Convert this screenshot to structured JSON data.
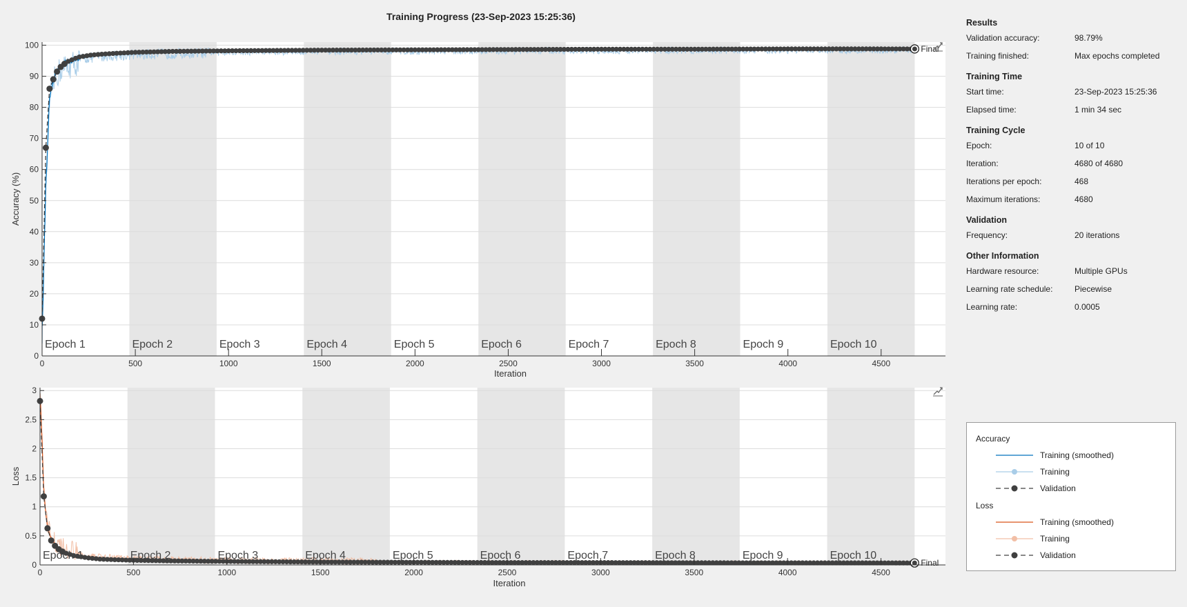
{
  "window": {
    "title": "Training Progress (23-Sep-2023 15:25:36)"
  },
  "colors": {
    "accuracy_smoothed": "#0072bd",
    "accuracy_training": "#a9cde8",
    "loss_smoothed": "#d95319",
    "loss_training": "#f2bfa6",
    "validation": "#404040",
    "epoch_shade": "#e6e6e6",
    "plot_bg": "#ffffff"
  },
  "epochs": [
    "Epoch 1",
    "Epoch 2",
    "Epoch 3",
    "Epoch 4",
    "Epoch 5",
    "Epoch 6",
    "Epoch 7",
    "Epoch 8",
    "Epoch 9",
    "Epoch 10"
  ],
  "final_label": "Final",
  "chart_data": [
    {
      "type": "line",
      "title": "",
      "xlabel": "Iteration",
      "ylabel": "Accuracy (%)",
      "xlim": [
        0,
        4845
      ],
      "ylim": [
        0,
        101
      ],
      "xticks": [
        0,
        500,
        1000,
        1500,
        2000,
        2500,
        3000,
        3500,
        4000,
        4500
      ],
      "yticks": [
        0,
        10,
        20,
        30,
        40,
        50,
        60,
        70,
        80,
        90,
        100
      ],
      "ytick_labels": [
        "0",
        "10",
        "20",
        "30",
        "40",
        "50",
        "60",
        "70",
        "80",
        "90",
        "100"
      ],
      "epoch_boundaries": [
        0,
        468,
        936,
        1404,
        1872,
        2340,
        2808,
        3276,
        3744,
        4212,
        4680
      ],
      "grid": true,
      "series": [
        {
          "name": "Training (smoothed)",
          "x": [
            1,
            20,
            40,
            60,
            80,
            100,
            150,
            200,
            300,
            400,
            500,
            700,
            900,
            1200,
            1600,
            2000,
            2500,
            3000,
            3500,
            4000,
            4500,
            4680
          ],
          "values": [
            9,
            55,
            83,
            89,
            92,
            93.5,
            95,
            96,
            96.8,
            97.2,
            97.5,
            97.8,
            98,
            98.2,
            98.3,
            98.4,
            98.5,
            98.6,
            98.6,
            98.7,
            98.7,
            98.8
          ]
        },
        {
          "name": "Training",
          "x": [
            1,
            20,
            40,
            60,
            80,
            100,
            150,
            200,
            300,
            400,
            500,
            700,
            900,
            1200,
            1600,
            2000,
            2500,
            3000,
            3500,
            4000,
            4500,
            4680
          ],
          "values": [
            9,
            55,
            83,
            89,
            92,
            93.5,
            95,
            96,
            96.8,
            97.2,
            97.5,
            97.8,
            98,
            98.2,
            98.3,
            98.4,
            98.5,
            98.6,
            98.6,
            98.7,
            98.7,
            98.8
          ]
        },
        {
          "name": "Validation",
          "x": [
            0,
            20,
            40,
            60,
            80,
            100,
            120,
            140,
            160,
            180,
            200,
            260,
            320,
            400,
            500,
            700,
            1000,
            1500,
            2000,
            2500,
            3000,
            3500,
            4000,
            4500,
            4680
          ],
          "values": [
            12,
            67,
            86,
            89,
            91.5,
            93,
            94,
            94.8,
            95.3,
            95.8,
            96.2,
            96.8,
            97.1,
            97.4,
            97.7,
            98,
            98.2,
            98.4,
            98.5,
            98.6,
            98.7,
            98.7,
            98.8,
            98.8,
            98.79
          ]
        }
      ]
    },
    {
      "type": "line",
      "title": "",
      "xlabel": "Iteration",
      "ylabel": "Loss",
      "xlim": [
        0,
        4845
      ],
      "ylim": [
        0,
        3.05
      ],
      "xticks": [
        0,
        500,
        1000,
        1500,
        2000,
        2500,
        3000,
        3500,
        4000,
        4500
      ],
      "yticks": [
        0,
        0.5,
        1,
        1.5,
        2,
        2.5,
        3
      ],
      "ytick_labels": [
        "0",
        "0.5",
        "1",
        "1.5",
        "2",
        "2.5",
        "3"
      ],
      "epoch_boundaries": [
        0,
        468,
        936,
        1404,
        1872,
        2340,
        2808,
        3276,
        3744,
        4212,
        4680
      ],
      "grid": true,
      "series": [
        {
          "name": "Training (smoothed)",
          "x": [
            1,
            10,
            20,
            30,
            40,
            60,
            80,
            100,
            150,
            200,
            300,
            400,
            500,
            700,
            1000,
            1500,
            2000,
            2500,
            3000,
            3500,
            4000,
            4500,
            4680
          ],
          "values": [
            2.85,
            2.2,
            1.3,
            0.9,
            0.65,
            0.45,
            0.35,
            0.28,
            0.2,
            0.16,
            0.12,
            0.1,
            0.09,
            0.07,
            0.06,
            0.05,
            0.045,
            0.04,
            0.04,
            0.035,
            0.035,
            0.033,
            0.033
          ]
        },
        {
          "name": "Training",
          "x": [
            1,
            10,
            20,
            30,
            40,
            60,
            80,
            100,
            150,
            200,
            300,
            400,
            500,
            700,
            1000,
            1500,
            2000,
            2500,
            3000,
            3500,
            4000,
            4500,
            4680
          ],
          "values": [
            2.85,
            2.2,
            1.3,
            0.9,
            0.65,
            0.45,
            0.35,
            0.28,
            0.2,
            0.16,
            0.12,
            0.1,
            0.09,
            0.07,
            0.06,
            0.05,
            0.045,
            0.04,
            0.04,
            0.035,
            0.035,
            0.033,
            0.033
          ]
        },
        {
          "name": "Validation",
          "x": [
            0,
            20,
            40,
            60,
            80,
            100,
            120,
            140,
            160,
            180,
            200,
            260,
            320,
            400,
            500,
            700,
            1000,
            1500,
            2000,
            2500,
            3000,
            3500,
            4000,
            4500,
            4680
          ],
          "values": [
            2.82,
            1.18,
            0.63,
            0.42,
            0.33,
            0.27,
            0.23,
            0.2,
            0.18,
            0.16,
            0.15,
            0.12,
            0.1,
            0.09,
            0.08,
            0.07,
            0.06,
            0.05,
            0.045,
            0.04,
            0.04,
            0.037,
            0.036,
            0.035,
            0.034
          ]
        }
      ]
    }
  ],
  "info": {
    "results": {
      "title": "Results",
      "validation_accuracy": {
        "label": "Validation accuracy:",
        "value": "98.79%"
      },
      "training_finished": {
        "label": "Training finished:",
        "value": "Max epochs completed"
      }
    },
    "training_time": {
      "title": "Training Time",
      "start_time": {
        "label": "Start time:",
        "value": "23-Sep-2023 15:25:36"
      },
      "elapsed_time": {
        "label": "Elapsed time:",
        "value": "1 min 34 sec"
      }
    },
    "training_cycle": {
      "title": "Training Cycle",
      "epoch": {
        "label": "Epoch:",
        "value": "10 of 10"
      },
      "iteration": {
        "label": "Iteration:",
        "value": "4680 of 4680"
      },
      "iterations_per_epoch": {
        "label": "Iterations per epoch:",
        "value": "468"
      },
      "max_iterations": {
        "label": "Maximum iterations:",
        "value": "4680"
      }
    },
    "validation": {
      "title": "Validation",
      "frequency": {
        "label": "Frequency:",
        "value": "20 iterations"
      }
    },
    "other_information": {
      "title": "Other Information",
      "hardware": {
        "label": "Hardware resource:",
        "value": "Multiple GPUs"
      },
      "lr_schedule": {
        "label": "Learning rate schedule:",
        "value": "Piecewise"
      },
      "learning_rate": {
        "label": "Learning rate:",
        "value": "0.0005"
      }
    }
  },
  "legend": {
    "accuracy_title": "Accuracy",
    "loss_title": "Loss",
    "smoothed_label": "Training (smoothed)",
    "training_label": "Training",
    "validation_label": "Validation"
  },
  "icons": {
    "export_plot": "export-plot-icon"
  }
}
